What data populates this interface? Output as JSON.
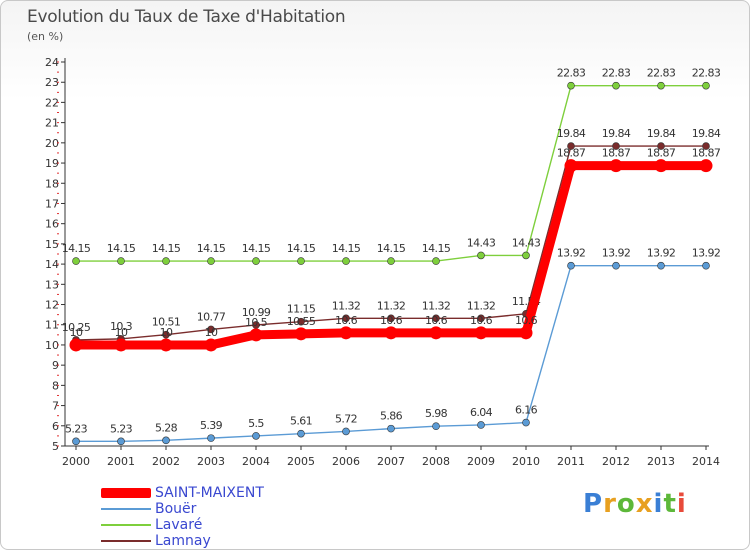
{
  "chart_data": {
    "type": "line",
    "title": "Evolution du Taux de Taxe d'Habitation",
    "ylabel": "(en %)",
    "x": [
      "2000",
      "2001",
      "2002",
      "2003",
      "2004",
      "2005",
      "2006",
      "2007",
      "2008",
      "2009",
      "2010",
      "2011",
      "2012",
      "2013",
      "2014"
    ],
    "ylim": [
      5,
      24
    ],
    "yticks": [
      "5",
      "6",
      "7",
      "8",
      "9",
      "10",
      "11",
      "12",
      "13",
      "14",
      "15",
      "16",
      "17",
      "18",
      "19",
      "20",
      "21",
      "22",
      "23",
      "24"
    ],
    "grid": false,
    "legend_position": "bottom-left",
    "series": [
      {
        "name": "Bouër",
        "color": "#5b9bd5",
        "values": [
          5.23,
          5.23,
          5.28,
          5.39,
          5.5,
          5.61,
          5.72,
          5.86,
          5.98,
          6.04,
          6.16,
          13.92,
          13.92,
          13.92,
          13.92
        ],
        "labels": [
          "5.23",
          "5.23",
          "5.28",
          "5.39",
          "5.5",
          "5.61",
          "5.72",
          "5.86",
          "5.98",
          "6.04",
          "6.16",
          "13.92",
          "13.92",
          "13.92",
          "13.92"
        ]
      },
      {
        "name": "Lavaré",
        "color": "#7ecf3c",
        "values": [
          14.15,
          14.15,
          14.15,
          14.15,
          14.15,
          14.15,
          14.15,
          14.15,
          14.15,
          14.43,
          14.43,
          22.83,
          22.83,
          22.83,
          22.83
        ],
        "labels": [
          "14.15",
          "14.15",
          "14.15",
          "14.15",
          "14.15",
          "14.15",
          "14.15",
          "14.15",
          "14.15",
          "14.43",
          "14.43",
          "22.83",
          "22.83",
          "22.83",
          "22.83"
        ]
      },
      {
        "name": "Lamnay",
        "color": "#7a2c2c",
        "values": [
          10.25,
          10.3,
          10.51,
          10.77,
          10.99,
          11.15,
          11.32,
          11.32,
          11.32,
          11.32,
          11.54,
          19.84,
          19.84,
          19.84,
          19.84
        ],
        "labels": [
          "10.25",
          "10.3",
          "10.51",
          "10.77",
          "10.99",
          "11.15",
          "11.32",
          "11.32",
          "11.32",
          "11.32",
          "11.54",
          "19.84",
          "19.84",
          "19.84",
          "19.84"
        ]
      },
      {
        "name": "SAINT-MAIXENT",
        "color": "#ff0000",
        "values": [
          10,
          10,
          10,
          10,
          10.5,
          10.55,
          10.6,
          10.6,
          10.6,
          10.6,
          10.6,
          18.87,
          18.87,
          18.87,
          18.87
        ],
        "labels": [
          "10",
          "10",
          "10",
          "10",
          "10.5",
          "10.55",
          "10.6",
          "10.6",
          "10.6",
          "10.6",
          "10.6",
          "18.87",
          "18.87",
          "18.87",
          "18.87"
        ]
      }
    ]
  },
  "legend": {
    "items": [
      {
        "name": "SAINT-MAIXENT",
        "color": "#ff0000"
      },
      {
        "name": "Bouër",
        "color": "#5b9bd5"
      },
      {
        "name": "Lavaré",
        "color": "#7ecf3c"
      },
      {
        "name": "Lamnay",
        "color": "#7a2c2c"
      }
    ]
  },
  "logo": {
    "text": "Proxiti",
    "letters": [
      {
        "ch": "P",
        "color": "#3a7fd5"
      },
      {
        "ch": "r",
        "color": "#e8a020"
      },
      {
        "ch": "o",
        "color": "#5db83a"
      },
      {
        "ch": "x",
        "color": "#e8a020"
      },
      {
        "ch": "i",
        "color": "#3a7fd5"
      },
      {
        "ch": "t",
        "color": "#5db83a"
      },
      {
        "ch": "i",
        "color": "#e84a3a"
      }
    ]
  }
}
